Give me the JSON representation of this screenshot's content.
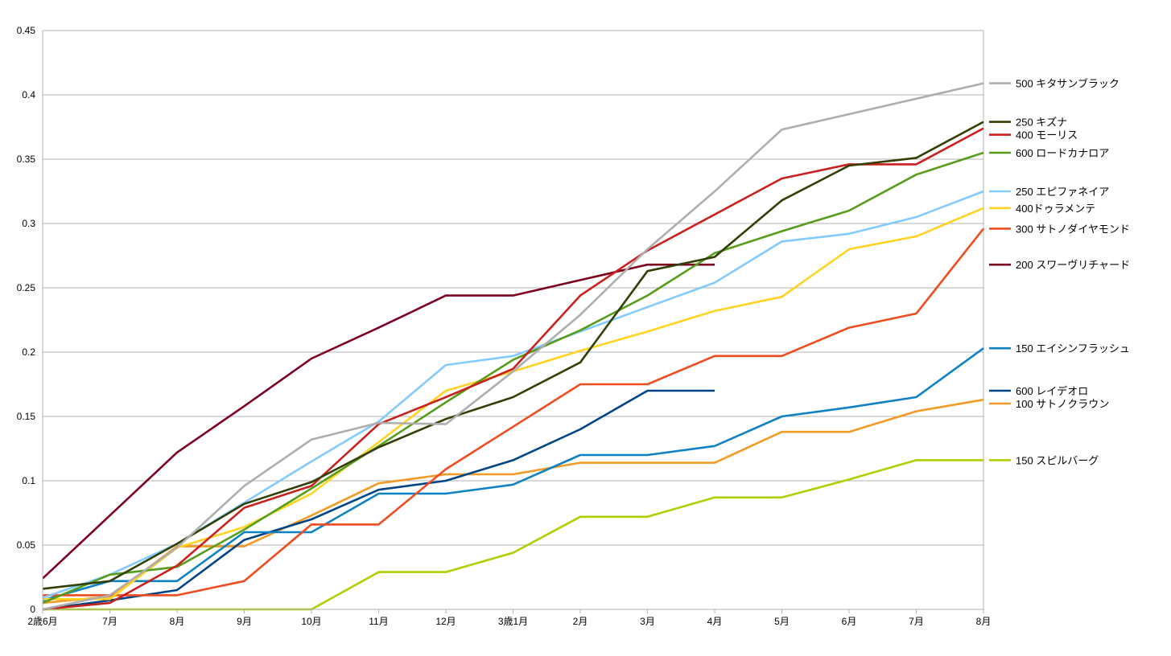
{
  "chart_data": {
    "type": "line",
    "title": "",
    "xlabel": "",
    "ylabel": "",
    "ylim": [
      0,
      0.45
    ],
    "yticks": [
      "0",
      "0.05",
      "0.1",
      "0.15",
      "0.2",
      "0.25",
      "0.3",
      "0.35",
      "0.4",
      "0.45"
    ],
    "grid": "horizontal",
    "legend_position": "right",
    "categories": [
      "2歳6月",
      "7月",
      "8月",
      "9月",
      "10月",
      "11月",
      "12月",
      "3歳1月",
      "2月",
      "3月",
      "4月",
      "5月",
      "6月",
      "7月",
      "8月"
    ],
    "series": [
      {
        "name": "500 キタサンブラック",
        "color": "#aeaeae",
        "values": [
          0,
          0.011,
          0.048,
          0.096,
          0.132,
          0.145,
          0.144,
          0.185,
          0.229,
          0.28,
          0.325,
          0.373,
          0.385,
          0.397,
          0.409
        ]
      },
      {
        "name": "250 キズナ",
        "color": "#314004",
        "values": [
          0.016,
          0.022,
          0.051,
          0.082,
          0.099,
          0.126,
          0.148,
          0.165,
          0.192,
          0.263,
          0.274,
          0.318,
          0.345,
          0.351,
          0.379
        ]
      },
      {
        "name": "400 モーリス",
        "color": "#c9211e",
        "values": [
          0,
          0.005,
          0.034,
          0.079,
          0.096,
          0.144,
          0.165,
          0.187,
          0.244,
          0.279,
          0.307,
          0.335,
          0.346,
          0.346,
          0.374
        ]
      },
      {
        "name": "600 ロードカナロア",
        "color": "#579d1c",
        "values": [
          0.005,
          0.027,
          0.033,
          0.062,
          0.094,
          0.127,
          0.161,
          0.194,
          0.217,
          0.244,
          0.277,
          0.294,
          0.31,
          0.338,
          0.355
        ]
      },
      {
        "name": "250 エピファネイア",
        "color": "#83caff",
        "values": [
          0.009,
          0.027,
          0.051,
          0.083,
          0.115,
          0.146,
          0.19,
          0.197,
          0.216,
          0.235,
          0.254,
          0.286,
          0.292,
          0.305,
          0.325
        ]
      },
      {
        "name": "400ドゥラメンテ",
        "color": "#ffd320",
        "values": [
          0.008,
          0.008,
          0.048,
          0.064,
          0.09,
          0.13,
          0.17,
          0.185,
          0.201,
          0.216,
          0.232,
          0.243,
          0.28,
          0.29,
          0.312
        ]
      },
      {
        "name": "300 サトノダイヤモンド",
        "color": "#ef4c1f",
        "values": [
          0.011,
          0.011,
          0.011,
          0.022,
          0.066,
          0.066,
          0.109,
          0.142,
          0.175,
          0.175,
          0.197,
          0.197,
          0.219,
          0.23,
          0.296
        ]
      },
      {
        "name": "200 スワーヴリチャード",
        "color": "#7e0021",
        "values": [
          0.024,
          0.073,
          0.122,
          0.158,
          0.195,
          0.219,
          0.244,
          0.244,
          0.256,
          0.268,
          0.268,
          null,
          null,
          null,
          null
        ]
      },
      {
        "name": "150 エイシンフラッシュ",
        "color": "#0e82c3",
        "values": [
          0.007,
          0.022,
          0.022,
          0.06,
          0.06,
          0.09,
          0.09,
          0.097,
          0.12,
          0.12,
          0.127,
          0.15,
          0.157,
          0.165,
          0.203
        ]
      },
      {
        "name": "600 レイデオロ",
        "color": "#004586",
        "values": [
          0,
          0.007,
          0.015,
          0.054,
          0.07,
          0.093,
          0.1,
          0.116,
          0.14,
          0.17,
          0.17,
          null,
          null,
          null,
          null
        ]
      },
      {
        "name": "100 サトノクラウン",
        "color": "#f39a24",
        "values": [
          0.005,
          0.01,
          0.049,
          0.049,
          0.073,
          0.098,
          0.105,
          0.105,
          0.114,
          0.114,
          0.114,
          0.138,
          0.138,
          0.154,
          0.163
        ]
      },
      {
        "name": "150 スピルバーグ",
        "color": "#aecf00",
        "values": [
          0,
          0,
          0,
          0,
          0,
          0.029,
          0.029,
          0.044,
          0.072,
          0.072,
          0.087,
          0.087,
          0.101,
          0.116,
          0.116
        ]
      }
    ]
  }
}
